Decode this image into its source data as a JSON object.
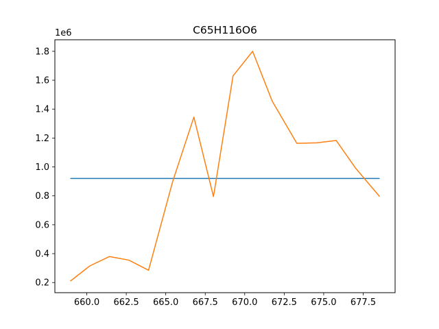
{
  "chart_data": {
    "type": "line",
    "title": "C65H116O6",
    "xlabel": "",
    "ylabel": "",
    "y_offset_label": "1e6",
    "xlim": [
      657.98,
      679.52
    ],
    "ylim": [
      0.13,
      1.88
    ],
    "x_ticks": [
      660.0,
      662.5,
      665.0,
      667.5,
      670.0,
      672.5,
      675.0,
      677.5
    ],
    "x_tick_labels": [
      "660.0",
      "662.5",
      "665.0",
      "667.5",
      "670.0",
      "672.5",
      "675.0",
      "677.5"
    ],
    "y_ticks": [
      0.2,
      0.4,
      0.6,
      0.8,
      1.0,
      1.2,
      1.4,
      1.6,
      1.8
    ],
    "y_tick_labels": [
      "0.2",
      "0.4",
      "0.6",
      "0.8",
      "1.0",
      "1.2",
      "1.4",
      "1.6",
      "1.8"
    ],
    "grid": false,
    "series": [
      {
        "color": "#1f77b4",
        "x": [
          658.96,
          678.54
        ],
        "y": [
          0.92,
          0.92
        ]
      },
      {
        "color": "#ff7f0e",
        "x": [
          658.96,
          660.19,
          661.43,
          662.67,
          663.91,
          665.44,
          666.78,
          668.02,
          669.26,
          670.5,
          671.74,
          673.3,
          674.55,
          675.79,
          677.03,
          678.54
        ],
        "y": [
          0.21,
          0.315,
          0.38,
          0.355,
          0.285,
          0.9,
          1.345,
          0.795,
          1.63,
          1.8,
          1.455,
          1.163,
          1.167,
          1.183,
          0.99,
          0.795
        ]
      }
    ]
  }
}
